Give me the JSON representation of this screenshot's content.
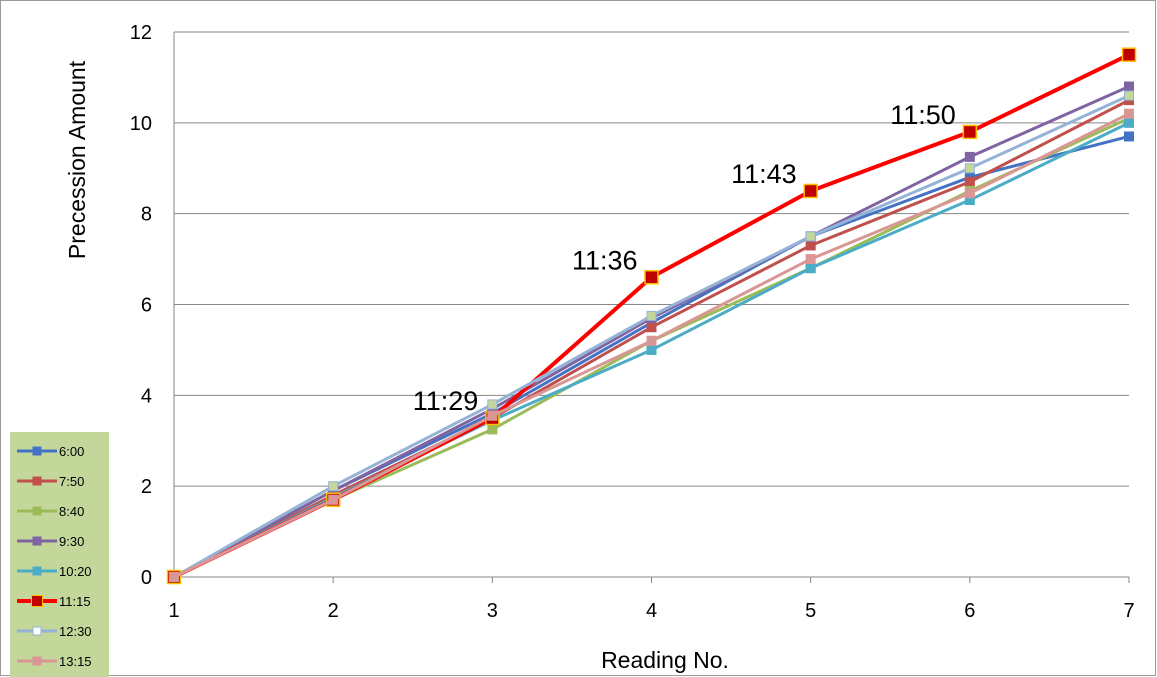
{
  "chart_data": {
    "type": "line",
    "title": "",
    "xlabel": "Reading No.",
    "ylabel": "Precession Amount",
    "x": [
      1,
      2,
      3,
      4,
      5,
      6,
      7
    ],
    "xlim": [
      1,
      7
    ],
    "ylim": [
      0,
      12
    ],
    "yticks": [
      0,
      2,
      4,
      6,
      8,
      10,
      12
    ],
    "grid": "horizontal",
    "legend_position": "bottom-left",
    "legend_background": "#c4d79b",
    "series": [
      {
        "name": "6:00",
        "color": "#4472c4",
        "values": [
          0,
          1.9,
          3.6,
          5.6,
          7.5,
          8.8,
          9.7
        ]
      },
      {
        "name": "7:50",
        "color": "#c0504d",
        "values": [
          0,
          1.8,
          3.5,
          5.5,
          7.3,
          8.7,
          10.5
        ]
      },
      {
        "name": "8:40",
        "color": "#9bbb59",
        "values": [
          0,
          1.7,
          3.25,
          5.2,
          6.8,
          8.5,
          10.1
        ]
      },
      {
        "name": "9:30",
        "color": "#8064a2",
        "values": [
          0,
          1.9,
          3.7,
          5.7,
          7.5,
          9.25,
          10.8
        ]
      },
      {
        "name": "10:20",
        "color": "#4bacc6",
        "values": [
          0,
          1.75,
          3.45,
          5.0,
          6.8,
          8.3,
          10.0
        ]
      },
      {
        "name": "11:15",
        "color": "#ff0000",
        "values": [
          0,
          1.7,
          3.5,
          6.6,
          8.5,
          9.8,
          11.5
        ]
      },
      {
        "name": "12:30",
        "color": "#95b3d7",
        "values": [
          0,
          2.0,
          3.8,
          5.75,
          7.5,
          9.0,
          10.6
        ]
      },
      {
        "name": "13:15",
        "color": "#da9694",
        "values": [
          0,
          1.7,
          3.55,
          5.2,
          7.0,
          8.45,
          10.2
        ]
      }
    ],
    "annotations": [
      {
        "text": "11:29",
        "x": 3,
        "y": 3.5
      },
      {
        "text": "11:36",
        "x": 4,
        "y": 6.6
      },
      {
        "text": "11:43",
        "x": 5,
        "y": 8.5
      },
      {
        "text": "11:50",
        "x": 6,
        "y": 9.8
      }
    ]
  }
}
